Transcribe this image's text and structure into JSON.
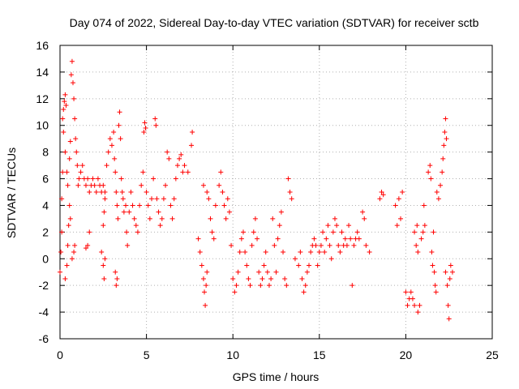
{
  "chart_data": {
    "type": "scatter",
    "title": "Day 074 of 2022, Sidereal Day-to-day VTEC variation (SDTVAR) for receiver sctb",
    "xlabel": "GPS time / hours",
    "ylabel": "SDTVAR / TECUs",
    "xlim": [
      0,
      25
    ],
    "ylim": [
      -6,
      16
    ],
    "xticks": [
      0,
      5,
      10,
      15,
      20,
      25
    ],
    "yticks": [
      -6,
      -4,
      -2,
      0,
      2,
      4,
      6,
      8,
      10,
      12,
      14,
      16
    ],
    "grid": true,
    "marker": "+",
    "color": "#ff0000",
    "series": [
      {
        "name": "SDTVAR",
        "points": [
          [
            0.0,
            -1.0
          ],
          [
            0.05,
            0.5
          ],
          [
            0.1,
            2.0
          ],
          [
            0.1,
            4.5
          ],
          [
            0.15,
            6.5
          ],
          [
            0.15,
            10.5
          ],
          [
            0.2,
            11.2
          ],
          [
            0.25,
            11.8
          ],
          [
            0.3,
            12.3
          ],
          [
            0.35,
            11.5
          ],
          [
            0.2,
            9.5
          ],
          [
            0.3,
            8.0
          ],
          [
            0.4,
            6.5
          ],
          [
            0.45,
            5.5
          ],
          [
            0.3,
            -1.5
          ],
          [
            0.4,
            -0.5
          ],
          [
            0.45,
            1.0
          ],
          [
            0.5,
            2.5
          ],
          [
            0.55,
            4.0
          ],
          [
            0.6,
            3.0
          ],
          [
            0.55,
            7.5
          ],
          [
            0.6,
            8.8
          ],
          [
            0.65,
            13.8
          ],
          [
            0.7,
            14.8
          ],
          [
            0.75,
            13.2
          ],
          [
            0.8,
            12.0
          ],
          [
            0.85,
            10.5
          ],
          [
            0.9,
            9.0
          ],
          [
            0.95,
            8.0
          ],
          [
            1.0,
            7.0
          ],
          [
            0.7,
            0.0
          ],
          [
            0.8,
            0.5
          ],
          [
            0.85,
            1.0
          ],
          [
            1.05,
            5.5
          ],
          [
            1.1,
            6.0
          ],
          [
            1.2,
            6.5
          ],
          [
            1.3,
            7.0
          ],
          [
            1.4,
            6.0
          ],
          [
            1.5,
            5.5
          ],
          [
            1.6,
            6.0
          ],
          [
            1.7,
            5.0
          ],
          [
            1.8,
            5.5
          ],
          [
            1.9,
            6.0
          ],
          [
            2.0,
            5.5
          ],
          [
            2.1,
            5.0
          ],
          [
            2.2,
            6.0
          ],
          [
            2.3,
            5.5
          ],
          [
            2.4,
            5.0
          ],
          [
            2.5,
            5.5
          ],
          [
            2.6,
            5.0
          ],
          [
            1.6,
            1.0
          ],
          [
            1.7,
            2.0
          ],
          [
            1.5,
            0.8
          ],
          [
            2.5,
            2.5
          ],
          [
            2.55,
            3.5
          ],
          [
            2.6,
            4.5
          ],
          [
            2.4,
            0.5
          ],
          [
            2.5,
            -0.5
          ],
          [
            2.55,
            -1.5
          ],
          [
            2.6,
            0.0
          ],
          [
            2.7,
            7.0
          ],
          [
            2.8,
            8.0
          ],
          [
            2.9,
            9.0
          ],
          [
            3.0,
            8.5
          ],
          [
            3.1,
            9.5
          ],
          [
            3.15,
            7.5
          ],
          [
            3.2,
            6.5
          ],
          [
            3.25,
            5.0
          ],
          [
            3.3,
            4.0
          ],
          [
            3.35,
            3.0
          ],
          [
            3.2,
            -1.0
          ],
          [
            3.25,
            -2.0
          ],
          [
            3.3,
            -1.5
          ],
          [
            3.4,
            10.0
          ],
          [
            3.45,
            11.0
          ],
          [
            3.5,
            9.0
          ],
          [
            3.55,
            6.0
          ],
          [
            3.6,
            5.0
          ],
          [
            3.65,
            4.5
          ],
          [
            3.7,
            3.5
          ],
          [
            3.8,
            4.0
          ],
          [
            3.85,
            2.0
          ],
          [
            3.9,
            1.0
          ],
          [
            4.0,
            3.5
          ],
          [
            4.1,
            5.0
          ],
          [
            4.2,
            4.0
          ],
          [
            4.3,
            3.0
          ],
          [
            4.4,
            2.5
          ],
          [
            4.5,
            2.0
          ],
          [
            4.6,
            4.0
          ],
          [
            4.7,
            5.5
          ],
          [
            4.8,
            6.5
          ],
          [
            4.85,
            9.5
          ],
          [
            4.9,
            10.2
          ],
          [
            4.95,
            9.8
          ],
          [
            5.0,
            5.0
          ],
          [
            5.1,
            4.0
          ],
          [
            5.2,
            3.0
          ],
          [
            5.3,
            4.5
          ],
          [
            5.4,
            6.0
          ],
          [
            5.5,
            10.5
          ],
          [
            5.55,
            10.0
          ],
          [
            5.6,
            4.5
          ],
          [
            5.7,
            3.5
          ],
          [
            5.8,
            2.5
          ],
          [
            5.9,
            3.0
          ],
          [
            6.0,
            4.5
          ],
          [
            6.1,
            5.5
          ],
          [
            6.2,
            8.0
          ],
          [
            6.3,
            7.5
          ],
          [
            6.4,
            4.0
          ],
          [
            6.5,
            3.0
          ],
          [
            6.6,
            4.5
          ],
          [
            6.7,
            6.0
          ],
          [
            6.8,
            7.0
          ],
          [
            6.9,
            7.5
          ],
          [
            7.0,
            7.8
          ],
          [
            7.1,
            6.5
          ],
          [
            7.2,
            7.0
          ],
          [
            7.4,
            6.5
          ],
          [
            7.6,
            8.5
          ],
          [
            7.65,
            9.5
          ],
          [
            8.0,
            1.5
          ],
          [
            8.1,
            0.5
          ],
          [
            8.2,
            -0.5
          ],
          [
            8.3,
            -1.5
          ],
          [
            8.35,
            -2.5
          ],
          [
            8.4,
            -3.5
          ],
          [
            8.45,
            -2.0
          ],
          [
            8.5,
            -1.0
          ],
          [
            8.3,
            5.5
          ],
          [
            8.5,
            5.0
          ],
          [
            8.6,
            4.5
          ],
          [
            8.7,
            3.0
          ],
          [
            8.8,
            2.0
          ],
          [
            8.9,
            1.5
          ],
          [
            9.0,
            4.0
          ],
          [
            9.2,
            5.5
          ],
          [
            9.3,
            6.5
          ],
          [
            9.4,
            5.0
          ],
          [
            9.5,
            4.0
          ],
          [
            9.6,
            3.0
          ],
          [
            9.7,
            4.5
          ],
          [
            9.8,
            3.5
          ],
          [
            9.9,
            1.0
          ],
          [
            10.0,
            -1.5
          ],
          [
            10.1,
            -2.5
          ],
          [
            10.2,
            -2.0
          ],
          [
            10.3,
            -1.0
          ],
          [
            10.4,
            0.5
          ],
          [
            10.5,
            1.5
          ],
          [
            10.6,
            2.0
          ],
          [
            10.7,
            0.5
          ],
          [
            10.8,
            -0.5
          ],
          [
            10.9,
            -1.5
          ],
          [
            11.0,
            -2.0
          ],
          [
            11.1,
            1.0
          ],
          [
            11.2,
            2.0
          ],
          [
            11.3,
            3.0
          ],
          [
            11.4,
            1.5
          ],
          [
            11.5,
            -1.0
          ],
          [
            11.6,
            -2.0
          ],
          [
            11.7,
            -1.5
          ],
          [
            11.8,
            -0.5
          ],
          [
            11.9,
            0.5
          ],
          [
            12.0,
            -1.0
          ],
          [
            12.1,
            -2.0
          ],
          [
            12.2,
            -1.5
          ],
          [
            12.3,
            3.0
          ],
          [
            12.4,
            1.0
          ],
          [
            12.5,
            -1.0
          ],
          [
            12.6,
            1.5
          ],
          [
            12.7,
            2.5
          ],
          [
            12.8,
            3.5
          ],
          [
            12.9,
            0.5
          ],
          [
            13.0,
            -1.5
          ],
          [
            13.1,
            -2.0
          ],
          [
            13.2,
            6.0
          ],
          [
            13.3,
            5.0
          ],
          [
            13.4,
            4.5
          ],
          [
            13.6,
            0.0
          ],
          [
            13.8,
            -0.5
          ],
          [
            13.9,
            0.5
          ],
          [
            14.0,
            -1.5
          ],
          [
            14.1,
            -2.5
          ],
          [
            14.2,
            -2.0
          ],
          [
            14.3,
            -1.0
          ],
          [
            14.4,
            -0.5
          ],
          [
            14.5,
            0.5
          ],
          [
            14.6,
            1.0
          ],
          [
            14.7,
            1.5
          ],
          [
            14.8,
            1.0
          ],
          [
            14.9,
            -0.5
          ],
          [
            15.0,
            0.5
          ],
          [
            15.1,
            1.0
          ],
          [
            15.2,
            2.0
          ],
          [
            15.3,
            0.5
          ],
          [
            15.4,
            1.5
          ],
          [
            15.5,
            2.5
          ],
          [
            15.6,
            1.0
          ],
          [
            15.7,
            0.0
          ],
          [
            15.8,
            2.0
          ],
          [
            15.9,
            3.0
          ],
          [
            16.0,
            2.5
          ],
          [
            16.1,
            1.0
          ],
          [
            16.2,
            0.5
          ],
          [
            16.3,
            2.0
          ],
          [
            16.4,
            1.0
          ],
          [
            16.5,
            1.5
          ],
          [
            16.6,
            1.0
          ],
          [
            16.7,
            2.5
          ],
          [
            16.8,
            1.5
          ],
          [
            16.9,
            -2.0
          ],
          [
            17.0,
            1.0
          ],
          [
            17.1,
            1.5
          ],
          [
            17.2,
            2.0
          ],
          [
            17.3,
            1.5
          ],
          [
            17.5,
            3.5
          ],
          [
            17.6,
            3.0
          ],
          [
            17.7,
            1.0
          ],
          [
            17.9,
            0.5
          ],
          [
            18.5,
            4.5
          ],
          [
            18.6,
            5.0
          ],
          [
            18.7,
            4.8
          ],
          [
            19.4,
            4.0
          ],
          [
            19.5,
            2.5
          ],
          [
            19.6,
            4.5
          ],
          [
            19.7,
            3.0
          ],
          [
            19.8,
            5.0
          ],
          [
            20.0,
            -2.5
          ],
          [
            20.1,
            -3.5
          ],
          [
            20.2,
            -3.0
          ],
          [
            20.3,
            -2.5
          ],
          [
            20.4,
            -3.0
          ],
          [
            20.5,
            -3.5
          ],
          [
            20.5,
            2.0
          ],
          [
            20.6,
            1.0
          ],
          [
            20.65,
            2.5
          ],
          [
            20.7,
            0.5
          ],
          [
            20.7,
            -4.0
          ],
          [
            20.8,
            -3.5
          ],
          [
            20.9,
            1.5
          ],
          [
            21.0,
            2.0
          ],
          [
            21.05,
            4.0
          ],
          [
            21.1,
            2.5
          ],
          [
            21.3,
            6.5
          ],
          [
            21.4,
            7.0
          ],
          [
            21.45,
            6.0
          ],
          [
            21.5,
            0.5
          ],
          [
            21.55,
            -0.5
          ],
          [
            21.6,
            2.0
          ],
          [
            21.65,
            -1.0
          ],
          [
            21.7,
            -2.0
          ],
          [
            21.75,
            -2.5
          ],
          [
            21.8,
            5.0
          ],
          [
            21.9,
            4.5
          ],
          [
            22.0,
            5.5
          ],
          [
            22.1,
            6.5
          ],
          [
            22.15,
            7.5
          ],
          [
            22.2,
            8.5
          ],
          [
            22.25,
            9.5
          ],
          [
            22.3,
            10.5
          ],
          [
            22.35,
            9.0
          ],
          [
            22.3,
            -1.0
          ],
          [
            22.4,
            -2.0
          ],
          [
            22.45,
            -3.5
          ],
          [
            22.5,
            -4.5
          ],
          [
            22.55,
            -1.5
          ],
          [
            22.6,
            -0.5
          ],
          [
            22.7,
            -1.0
          ]
        ]
      }
    ]
  }
}
